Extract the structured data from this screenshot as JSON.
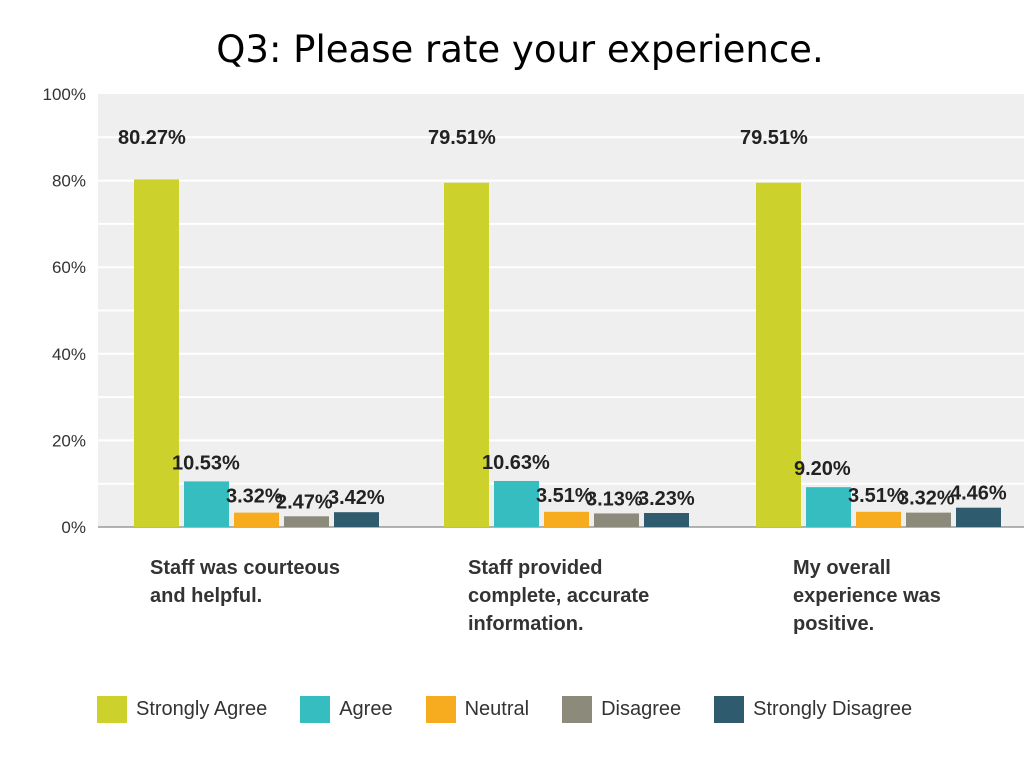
{
  "chart_data": {
    "type": "bar",
    "title": "Q3: Please rate your experience.",
    "categories": [
      [
        "Staff was courteous",
        "and helpful."
      ],
      [
        "Staff provided",
        "complete, accurate",
        "information."
      ],
      [
        "My overall",
        "experience was",
        "positive."
      ]
    ],
    "series": [
      {
        "name": "Strongly Agree",
        "color": "#ccd22b",
        "values": [
          80.27,
          79.51,
          79.51
        ],
        "labels": [
          "80.27%",
          "79.51%",
          "79.51%"
        ]
      },
      {
        "name": "Agree",
        "color": "#35bdc0",
        "values": [
          10.53,
          10.63,
          9.2
        ],
        "labels": [
          "10.53%",
          "10.63%",
          "9.20%"
        ]
      },
      {
        "name": "Neutral",
        "color": "#f7ac1f",
        "values": [
          3.32,
          3.51,
          3.51
        ],
        "labels": [
          "3.32%",
          "3.51%",
          "3.51%"
        ]
      },
      {
        "name": "Disagree",
        "color": "#8c8a7a",
        "values": [
          2.47,
          3.13,
          3.32
        ],
        "labels": [
          "2.47%",
          "3.13%",
          "3.32%"
        ]
      },
      {
        "name": "Strongly Disagree",
        "color": "#2e5b6e",
        "values": [
          3.42,
          3.23,
          4.46
        ],
        "labels": [
          "3.42%",
          "3.23%",
          "4.46%"
        ]
      }
    ],
    "ylim": [
      0,
      100
    ],
    "yticks": [
      "0%",
      "20%",
      "40%",
      "60%",
      "80%",
      "100%"
    ],
    "grid": true,
    "legend": "bottom"
  }
}
